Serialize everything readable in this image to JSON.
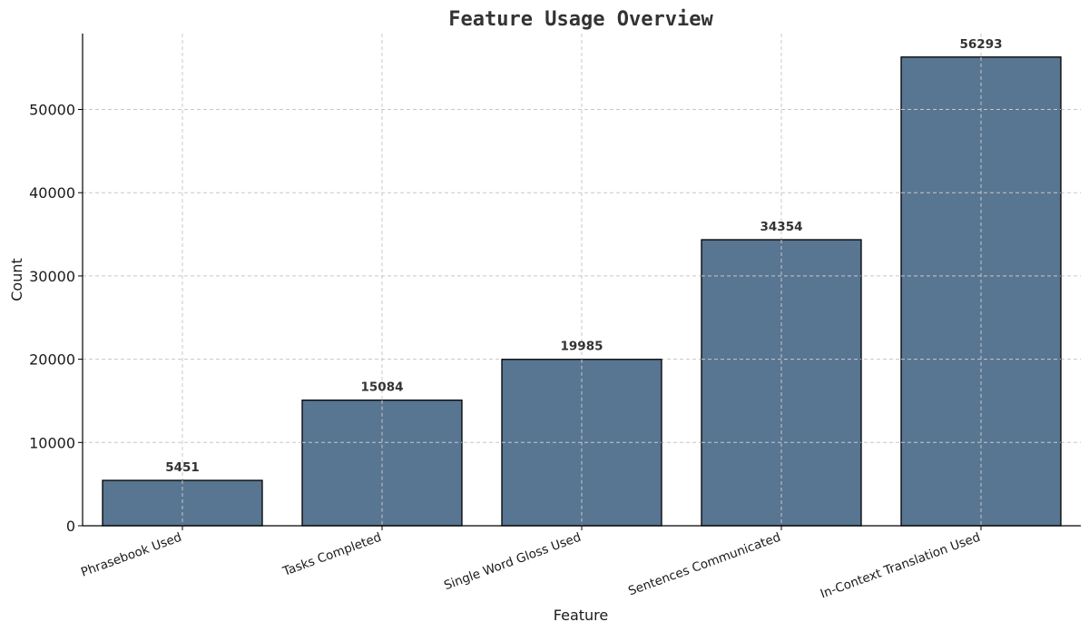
{
  "chart_data": {
    "type": "bar",
    "title": "Feature Usage Overview",
    "xlabel": "Feature",
    "ylabel": "Count",
    "categories": [
      "Phrasebook Used",
      "Tasks Completed",
      "Single Word Gloss Used",
      "Sentences Communicated",
      "In-Context Translation Used"
    ],
    "values": [
      5451,
      15084,
      19985,
      34354,
      56293
    ],
    "data_labels": [
      "5451",
      "15084",
      "19985",
      "34354",
      "56293"
    ],
    "yticks": [
      0,
      10000,
      20000,
      30000,
      40000,
      50000
    ],
    "ytick_labels": [
      "0",
      "10000",
      "20000",
      "30000",
      "40000",
      "50000"
    ],
    "ylim": [
      0,
      59108
    ],
    "grid": true,
    "bar_color": "#587592",
    "bar_edge_color": "#000000",
    "xtick_rotation": "-20deg"
  }
}
